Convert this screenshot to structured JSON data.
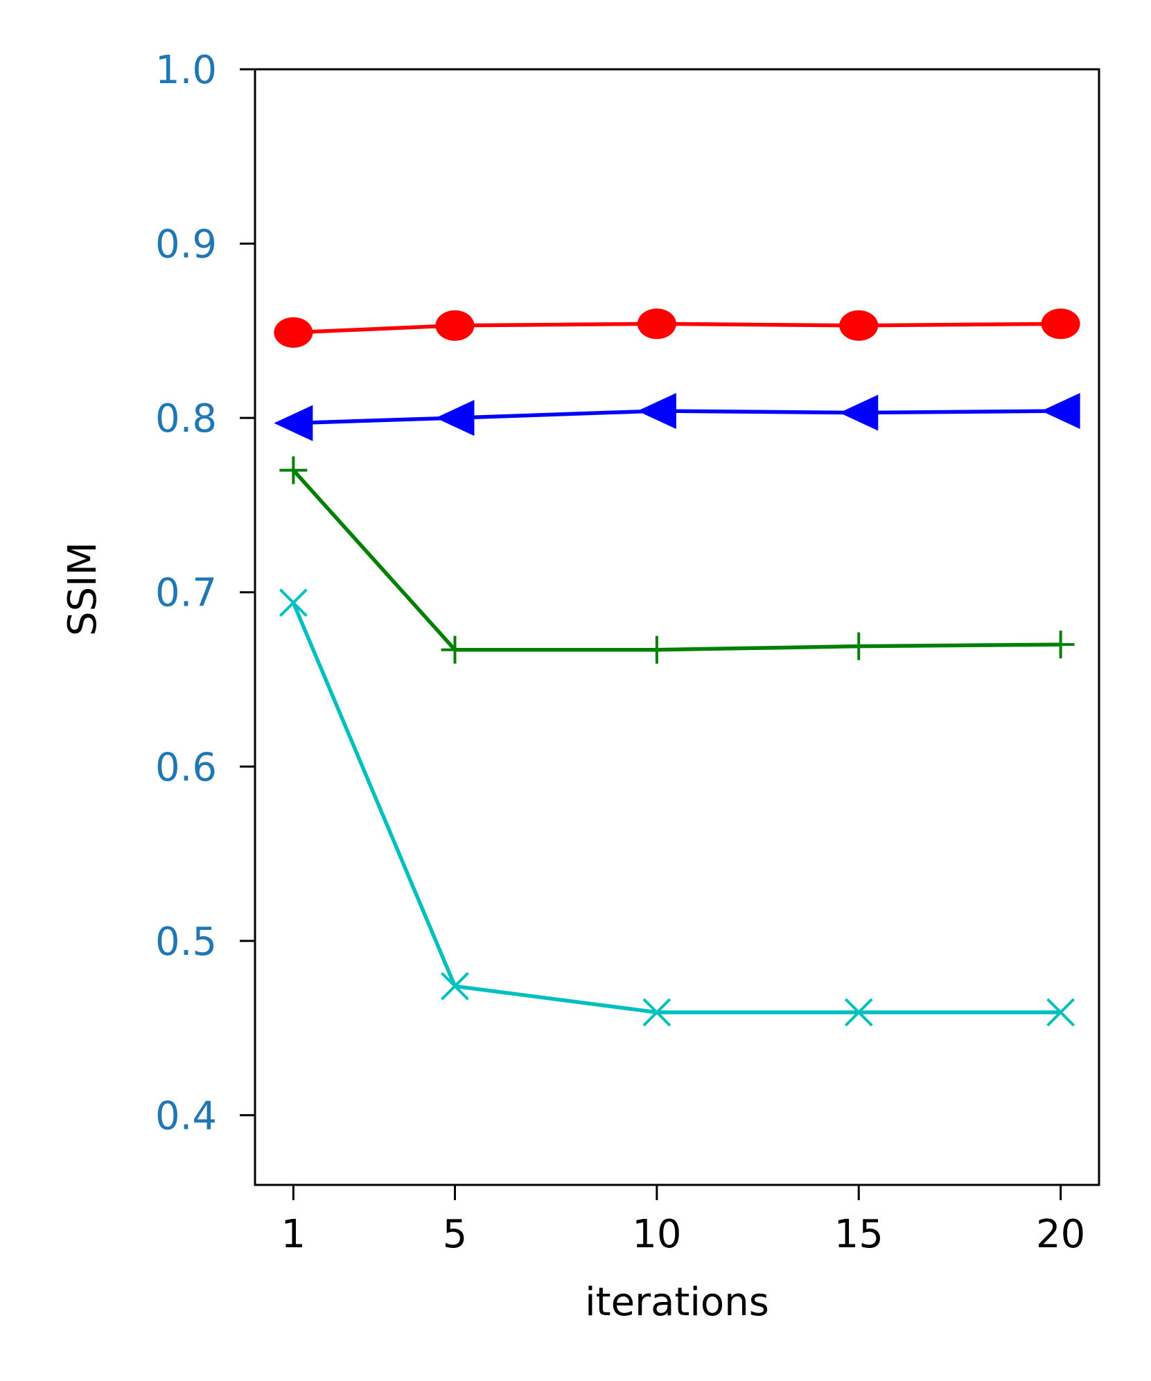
{
  "chart_data": {
    "type": "line",
    "title": "",
    "xlabel": "iterations",
    "ylabel": "SSIM",
    "x": [
      1,
      5,
      10,
      15,
      20
    ],
    "xticks": [
      "1",
      "5",
      "10",
      "15",
      "20"
    ],
    "yticks": [
      "0.4",
      "0.5",
      "0.6",
      "0.7",
      "0.8",
      "0.9",
      "1.0"
    ],
    "ylim": [
      0.36,
      1.0
    ],
    "xlim": [
      0.05,
      20.95
    ],
    "grid": false,
    "ytick_color": "#1f77b4",
    "series": [
      {
        "values": [
          0.849,
          0.853,
          0.854,
          0.853,
          0.854
        ],
        "color": "#ff0000",
        "marker": "circle"
      },
      {
        "values": [
          0.797,
          0.8,
          0.804,
          0.803,
          0.804
        ],
        "color": "#0000ff",
        "marker": "triangle-left"
      },
      {
        "values": [
          0.77,
          0.667,
          0.667,
          0.669,
          0.67
        ],
        "color": "#008000",
        "marker": "plus"
      },
      {
        "values": [
          0.694,
          0.474,
          0.459,
          0.459,
          0.459
        ],
        "color": "#00bfbf",
        "marker": "x"
      }
    ]
  }
}
